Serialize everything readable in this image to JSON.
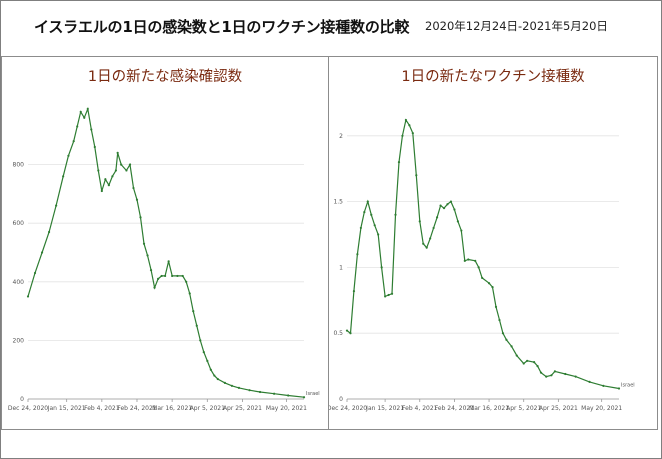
{
  "header": {
    "title": "イスラエルの1日の感染数と1日のワクチン接種数の比較",
    "period": "2020年12月24日-2021年5月20日"
  },
  "colors": {
    "line": "#2e7d32",
    "title": "#7a2a10",
    "border": "#8c8c8c"
  },
  "chart_data": [
    {
      "type": "line",
      "title": "1日の新たな感染確認数",
      "xlabel": "",
      "ylabel": "",
      "x_ticks": [
        "Dec 24, 2020",
        "Jan 15, 2021",
        "Feb 4, 2021",
        "Feb 24, 2021",
        "Mar 16, 2021",
        "Apr 5, 2021",
        "Apr 25, 2021",
        "May 20, 2021"
      ],
      "y_ticks": [
        "0",
        "200",
        "400",
        "600",
        "800"
      ],
      "ylim": [
        0,
        1000
      ],
      "end_label": "Israel",
      "grid": true,
      "series": [
        {
          "values": [
            [
              0,
              350
            ],
            [
              4,
              430
            ],
            [
              8,
              500
            ],
            [
              12,
              570
            ],
            [
              16,
              660
            ],
            [
              20,
              760
            ],
            [
              23,
              830
            ],
            [
              26,
              880
            ],
            [
              28,
              930
            ],
            [
              30,
              980
            ],
            [
              32,
              960
            ],
            [
              34,
              990
            ],
            [
              36,
              920
            ],
            [
              38,
              860
            ],
            [
              40,
              780
            ],
            [
              42,
              710
            ],
            [
              44,
              750
            ],
            [
              46,
              730
            ],
            [
              48,
              760
            ],
            [
              50,
              780
            ],
            [
              51,
              840
            ],
            [
              53,
              800
            ],
            [
              56,
              780
            ],
            [
              58,
              800
            ],
            [
              60,
              720
            ],
            [
              62,
              680
            ],
            [
              64,
              620
            ],
            [
              66,
              530
            ],
            [
              68,
              490
            ],
            [
              70,
              440
            ],
            [
              72,
              380
            ],
            [
              74,
              410
            ],
            [
              76,
              420
            ],
            [
              78,
              420
            ],
            [
              80,
              470
            ],
            [
              82,
              420
            ],
            [
              85,
              420
            ],
            [
              88,
              420
            ],
            [
              90,
              400
            ],
            [
              92,
              360
            ],
            [
              94,
              300
            ],
            [
              96,
              250
            ],
            [
              98,
              200
            ],
            [
              100,
              160
            ],
            [
              102,
              130
            ],
            [
              104,
              100
            ],
            [
              106,
              80
            ],
            [
              108,
              68
            ],
            [
              112,
              55
            ],
            [
              116,
              45
            ],
            [
              120,
              38
            ],
            [
              126,
              30
            ],
            [
              132,
              24
            ],
            [
              140,
              18
            ],
            [
              148,
              12
            ],
            [
              157,
              6
            ]
          ]
        }
      ]
    },
    {
      "type": "line",
      "title": "1日の新たなワクチン接種数",
      "xlabel": "",
      "ylabel": "",
      "x_ticks": [
        "Dec 24, 2020",
        "Jan 15, 2021",
        "Feb 4, 2021",
        "Feb 24, 2021",
        "Mar 16, 2021",
        "Apr 5, 2021",
        "Apr 25, 2021",
        "May 20, 2021"
      ],
      "y_ticks": [
        "0",
        "0.5",
        "1",
        "1.5",
        "2"
      ],
      "ylim": [
        0,
        2.5
      ],
      "end_label": "Israel",
      "grid": true,
      "series": [
        {
          "values": [
            [
              0,
              0.52
            ],
            [
              2,
              0.5
            ],
            [
              4,
              0.82
            ],
            [
              6,
              1.1
            ],
            [
              8,
              1.3
            ],
            [
              10,
              1.42
            ],
            [
              12,
              1.5
            ],
            [
              14,
              1.4
            ],
            [
              16,
              1.32
            ],
            [
              18,
              1.25
            ],
            [
              20,
              1.0
            ],
            [
              22,
              0.78
            ],
            [
              24,
              0.79
            ],
            [
              26,
              0.8
            ],
            [
              28,
              1.4
            ],
            [
              30,
              1.8
            ],
            [
              32,
              2.0
            ],
            [
              34,
              2.12
            ],
            [
              36,
              2.08
            ],
            [
              38,
              2.02
            ],
            [
              40,
              1.7
            ],
            [
              42,
              1.35
            ],
            [
              44,
              1.18
            ],
            [
              46,
              1.15
            ],
            [
              48,
              1.22
            ],
            [
              50,
              1.3
            ],
            [
              52,
              1.38
            ],
            [
              54,
              1.47
            ],
            [
              56,
              1.45
            ],
            [
              58,
              1.48
            ],
            [
              60,
              1.5
            ],
            [
              62,
              1.44
            ],
            [
              64,
              1.35
            ],
            [
              66,
              1.28
            ],
            [
              68,
              1.05
            ],
            [
              70,
              1.06
            ],
            [
              74,
              1.05
            ],
            [
              76,
              1.0
            ],
            [
              78,
              0.92
            ],
            [
              82,
              0.88
            ],
            [
              84,
              0.85
            ],
            [
              86,
              0.7
            ],
            [
              88,
              0.6
            ],
            [
              90,
              0.5
            ],
            [
              92,
              0.45
            ],
            [
              95,
              0.4
            ],
            [
              98,
              0.33
            ],
            [
              102,
              0.27
            ],
            [
              104,
              0.29
            ],
            [
              108,
              0.28
            ],
            [
              110,
              0.25
            ],
            [
              112,
              0.2
            ],
            [
              115,
              0.17
            ],
            [
              118,
              0.18
            ],
            [
              120,
              0.21
            ],
            [
              126,
              0.19
            ],
            [
              132,
              0.17
            ],
            [
              140,
              0.13
            ],
            [
              148,
              0.1
            ],
            [
              157,
              0.08
            ]
          ]
        }
      ]
    }
  ]
}
